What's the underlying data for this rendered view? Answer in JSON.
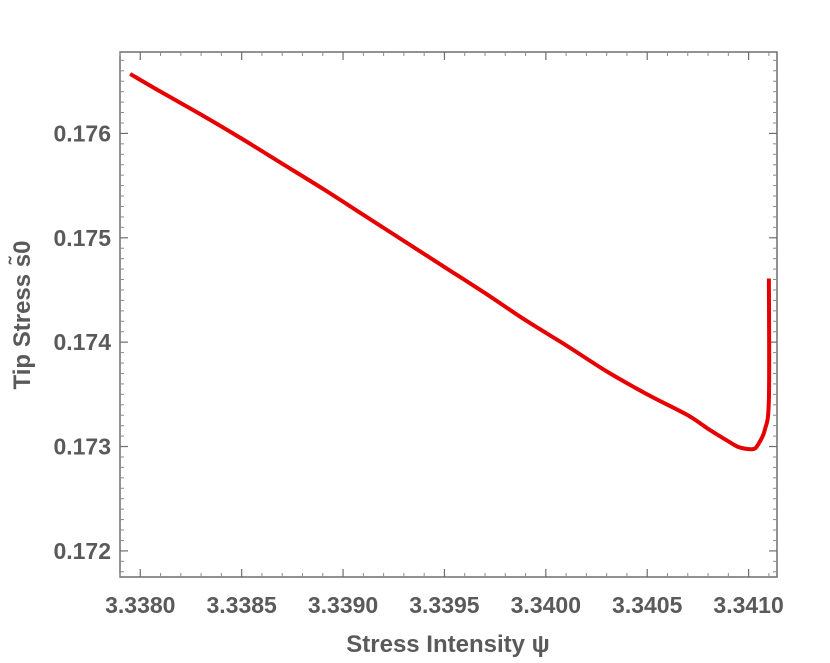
{
  "chart_data": {
    "type": "line",
    "xlabel": "Stress Intensity ψ",
    "ylabel": "Tip Stress s̃0",
    "xlim": [
      3.3379,
      3.34114
    ],
    "ylim": [
      0.17175,
      0.17678
    ],
    "x_ticks": [
      "3.3380",
      "3.3385",
      "3.3390",
      "3.3395",
      "3.3400",
      "3.3405",
      "3.3410"
    ],
    "y_ticks": [
      "0.172",
      "0.173",
      "0.174",
      "0.175",
      "0.176"
    ],
    "grid": false,
    "series": [
      {
        "color": "#e60000",
        "x": [
          3.33795,
          3.3381,
          3.3383,
          3.3385,
          3.3387,
          3.3389,
          3.3391,
          3.3393,
          3.3395,
          3.3397,
          3.3399,
          3.3401,
          3.3403,
          3.3405,
          3.3407,
          3.3408,
          3.3409,
          3.34095,
          3.341,
          3.34103,
          3.34105,
          3.34108,
          3.3411,
          3.3411
        ],
        "y": [
          0.17657,
          0.1764,
          0.17618,
          0.17595,
          0.17571,
          0.17547,
          0.17522,
          0.17497,
          0.17472,
          0.17447,
          0.17421,
          0.17397,
          0.17372,
          0.1735,
          0.1733,
          0.17317,
          0.17305,
          0.172995,
          0.172975,
          0.17298,
          0.17303,
          0.17316,
          0.17345,
          0.17461
        ]
      }
    ]
  }
}
